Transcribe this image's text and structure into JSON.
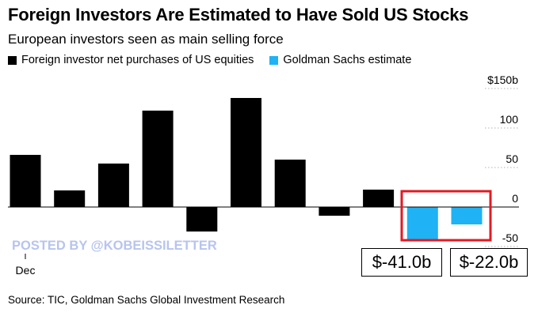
{
  "title": "Foreign Investors Are Estimated to Have Sold US Stocks",
  "subtitle": "European investors seen as main selling force",
  "legend": [
    {
      "label": "Foreign investor net purchases of US equities",
      "color": "#000000"
    },
    {
      "label": "Goldman Sachs estimate",
      "color": "#1fb2f4"
    }
  ],
  "watermark": "POSTED BY @KOBEISSILETTER",
  "source": "Source: TIC, Goldman Sachs Global Investment Research",
  "callouts": [
    "$-41.0b",
    "$-22.0b"
  ],
  "colors": {
    "actual": "#000000",
    "estimate": "#1fb2f4",
    "highlight": "#e21a22"
  },
  "chart_data": {
    "type": "bar",
    "title": "Foreign Investors Are Estimated to Have Sold US Stocks",
    "subtitle": "European investors seen as main selling force",
    "xlabel": "",
    "ylabel": "",
    "x_tick_labels": [
      "Dec"
    ],
    "ylim": [
      -55,
      155
    ],
    "y_ticks": [
      -50,
      0,
      50,
      100,
      150
    ],
    "y_tick_labels": [
      "-50",
      "0",
      "50",
      "100",
      "$150b"
    ],
    "series": [
      {
        "name": "Foreign investor net purchases of US equities",
        "color": "#000000",
        "values": [
          66,
          21,
          55,
          122,
          -31,
          138,
          60,
          -11,
          22,
          null,
          null
        ]
      },
      {
        "name": "Goldman Sachs estimate",
        "color": "#1fb2f4",
        "values": [
          null,
          null,
          null,
          null,
          null,
          null,
          null,
          null,
          null,
          -41,
          -22
        ]
      }
    ],
    "annotations": [
      "$-41.0b",
      "$-22.0b"
    ],
    "grid": "horizontal dotted",
    "legend_position": "top-left"
  }
}
